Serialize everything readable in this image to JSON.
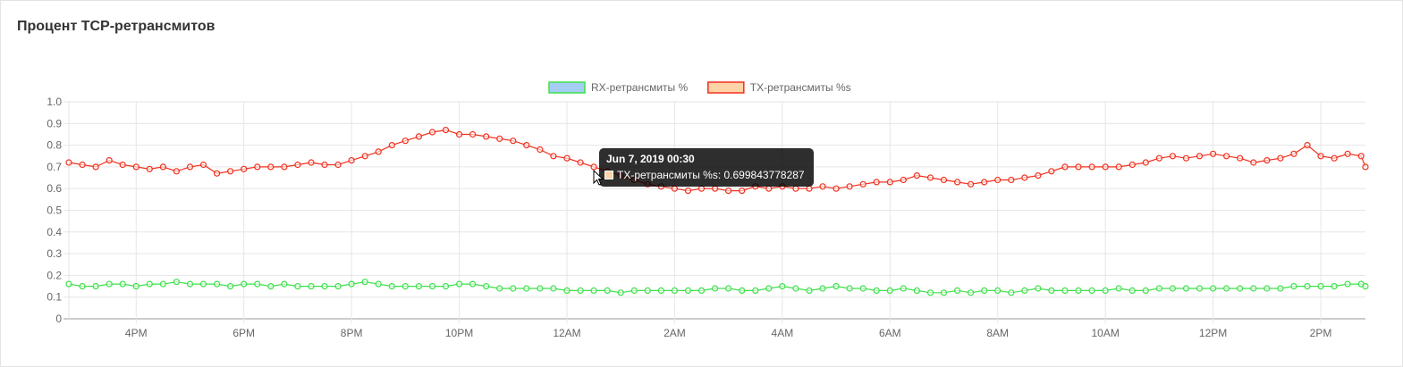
{
  "panel": {
    "title": "Процент TCP-ретрансмитов"
  },
  "colors": {
    "rx_line": "#3ee04b",
    "rx_fill": "#a6cef5",
    "tx_line": "#f0301e",
    "tx_fill": "#ffd3a8",
    "grid": "#e6e6e6",
    "axis": "#999999"
  },
  "tooltip": {
    "title": "Jun 7, 2019 00:30",
    "series_label": "TX-ретрансмиты %s",
    "value": "0.699843778287"
  },
  "chart_data": {
    "type": "line",
    "legend_position": "top",
    "grid": true,
    "xlabel": "",
    "ylabel": "",
    "ylim": [
      0,
      1
    ],
    "yticks": [
      "0",
      "0.1",
      "0.2",
      "0.3",
      "0.4",
      "0.5",
      "0.6",
      "0.7",
      "0.8",
      "0.9",
      "1.0"
    ],
    "xticks": [
      "4PM",
      "6PM",
      "8PM",
      "10PM",
      "12AM",
      "2AM",
      "4AM",
      "6AM",
      "8AM",
      "10AM",
      "12PM",
      "2PM"
    ],
    "xtick_hours": [
      16,
      18,
      20,
      22,
      24,
      26,
      28,
      30,
      32,
      34,
      36,
      38
    ],
    "time_range": [
      "Jun 6, 2019 14:45",
      "Jun 7, 2019 14:50"
    ],
    "x_hours": [
      14.75,
      15.0,
      15.25,
      15.5,
      15.75,
      16.0,
      16.25,
      16.5,
      16.75,
      17.0,
      17.25,
      17.5,
      17.75,
      18.0,
      18.25,
      18.5,
      18.75,
      19.0,
      19.25,
      19.5,
      19.75,
      20.0,
      20.25,
      20.5,
      20.75,
      21.0,
      21.25,
      21.5,
      21.75,
      22.0,
      22.25,
      22.5,
      22.75,
      23.0,
      23.25,
      23.5,
      23.75,
      24.0,
      24.25,
      24.5,
      24.75,
      25.0,
      25.25,
      25.5,
      25.75,
      26.0,
      26.25,
      26.5,
      26.75,
      27.0,
      27.25,
      27.5,
      27.75,
      28.0,
      28.25,
      28.5,
      28.75,
      29.0,
      29.25,
      29.5,
      29.75,
      30.0,
      30.25,
      30.5,
      30.75,
      31.0,
      31.25,
      31.5,
      31.75,
      32.0,
      32.25,
      32.5,
      32.75,
      33.0,
      33.25,
      33.5,
      33.75,
      34.0,
      34.25,
      34.5,
      34.75,
      35.0,
      35.25,
      35.5,
      35.75,
      36.0,
      36.25,
      36.5,
      36.75,
      37.0,
      37.25,
      37.5,
      37.75,
      38.0,
      38.25,
      38.5,
      38.75,
      38.83
    ],
    "series": [
      {
        "name": "RX-ретрансмиты %",
        "values": [
          0.16,
          0.15,
          0.15,
          0.16,
          0.16,
          0.15,
          0.16,
          0.16,
          0.17,
          0.16,
          0.16,
          0.16,
          0.15,
          0.16,
          0.16,
          0.15,
          0.16,
          0.15,
          0.15,
          0.15,
          0.15,
          0.16,
          0.17,
          0.16,
          0.15,
          0.15,
          0.15,
          0.15,
          0.15,
          0.16,
          0.16,
          0.15,
          0.14,
          0.14,
          0.14,
          0.14,
          0.14,
          0.13,
          0.13,
          0.13,
          0.13,
          0.12,
          0.13,
          0.13,
          0.13,
          0.13,
          0.13,
          0.13,
          0.14,
          0.14,
          0.13,
          0.13,
          0.14,
          0.15,
          0.14,
          0.13,
          0.14,
          0.15,
          0.14,
          0.14,
          0.13,
          0.13,
          0.14,
          0.13,
          0.12,
          0.12,
          0.13,
          0.12,
          0.13,
          0.13,
          0.12,
          0.13,
          0.14,
          0.13,
          0.13,
          0.13,
          0.13,
          0.13,
          0.14,
          0.13,
          0.13,
          0.14,
          0.14,
          0.14,
          0.14,
          0.14,
          0.14,
          0.14,
          0.14,
          0.14,
          0.14,
          0.15,
          0.15,
          0.15,
          0.15,
          0.16,
          0.16,
          0.15
        ]
      },
      {
        "name": "TX-ретрансмиты %s",
        "values": [
          0.72,
          0.71,
          0.7,
          0.73,
          0.71,
          0.7,
          0.69,
          0.7,
          0.68,
          0.7,
          0.71,
          0.67,
          0.68,
          0.69,
          0.7,
          0.7,
          0.7,
          0.71,
          0.72,
          0.71,
          0.71,
          0.73,
          0.75,
          0.77,
          0.8,
          0.82,
          0.84,
          0.86,
          0.87,
          0.85,
          0.85,
          0.84,
          0.83,
          0.82,
          0.8,
          0.78,
          0.75,
          0.74,
          0.72,
          0.7,
          0.68,
          0.66,
          0.64,
          0.62,
          0.61,
          0.6,
          0.59,
          0.6,
          0.6,
          0.59,
          0.59,
          0.61,
          0.6,
          0.61,
          0.6,
          0.6,
          0.61,
          0.6,
          0.61,
          0.62,
          0.63,
          0.63,
          0.64,
          0.66,
          0.65,
          0.64,
          0.63,
          0.62,
          0.63,
          0.64,
          0.64,
          0.65,
          0.66,
          0.68,
          0.7,
          0.7,
          0.7,
          0.7,
          0.7,
          0.71,
          0.72,
          0.74,
          0.75,
          0.74,
          0.75,
          0.76,
          0.75,
          0.74,
          0.72,
          0.73,
          0.74,
          0.76,
          0.8,
          0.75,
          0.74,
          0.76,
          0.75,
          0.7
        ]
      }
    ]
  }
}
